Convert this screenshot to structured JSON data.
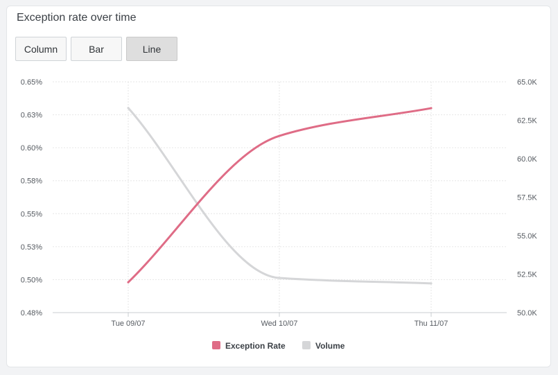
{
  "title": "Exception rate over time",
  "buttons": [
    {
      "label": "Column",
      "active": false
    },
    {
      "label": "Bar",
      "active": false
    },
    {
      "label": "Line",
      "active": true
    }
  ],
  "chart_data": {
    "type": "line",
    "x": [
      "Tue 09/07",
      "Wed 10/07",
      "Thu 11/07"
    ],
    "series": [
      {
        "name": "Exception Rate",
        "axis": "left",
        "color": "#df6c86",
        "values": [
          0.498,
          0.609,
          0.63
        ]
      },
      {
        "name": "Volume",
        "axis": "right",
        "color": "#d5d6d8",
        "values": [
          63300,
          52250,
          51900
        ]
      }
    ],
    "y_left": {
      "ticks": [
        "0.65%",
        "0.63%",
        "0.60%",
        "0.58%",
        "0.55%",
        "0.53%",
        "0.50%",
        "0.48%"
      ],
      "ylim": [
        0.475,
        0.65
      ]
    },
    "y_right": {
      "ticks": [
        "65.0K",
        "62.5K",
        "60.0K",
        "57.5K",
        "55.0K",
        "52.5K",
        "50.0K"
      ],
      "ylim": [
        50000,
        65000
      ]
    },
    "grid": true,
    "legend": "bottom-center"
  }
}
